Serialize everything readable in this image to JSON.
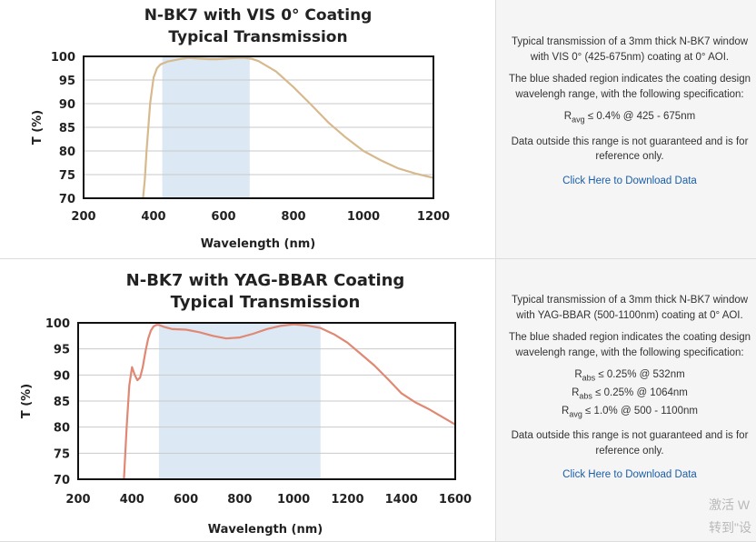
{
  "chart_data": [
    {
      "type": "line",
      "title": "N-BK7 with VIS 0° Coating",
      "subtitle": "Typical Transmission",
      "xlabel": "Wavelength (nm)",
      "ylabel": "T (%)",
      "xlim": [
        200,
        1200
      ],
      "ylim": [
        70,
        100
      ],
      "xticks": [
        "200",
        "400",
        "600",
        "800",
        "1000",
        "1200"
      ],
      "yticks": [
        "70",
        "75",
        "80",
        "85",
        "90",
        "95",
        "100"
      ],
      "shaded_region": [
        425,
        675
      ],
      "shade_color": "#dce9f5",
      "line_color": "#d7b98e",
      "grid": true,
      "series": [
        {
          "x": [
            370,
            375,
            380,
            390,
            400,
            410,
            420,
            440,
            460,
            480,
            500,
            520,
            540,
            560,
            580,
            600,
            620,
            640,
            660,
            680,
            700,
            750,
            800,
            850,
            900,
            950,
            1000,
            1050,
            1100,
            1150,
            1200
          ],
          "y": [
            70,
            74,
            80,
            90,
            95.5,
            97.5,
            98.3,
            98.9,
            99.2,
            99.5,
            99.7,
            99.6,
            99.5,
            99.4,
            99.4,
            99.5,
            99.6,
            99.7,
            99.7,
            99.5,
            99.0,
            96.8,
            93.5,
            89.8,
            86.0,
            82.8,
            80.0,
            78.0,
            76.3,
            75.2,
            74.3
          ]
        }
      ]
    },
    {
      "type": "line",
      "title": "N-BK7 with YAG-BBAR Coating",
      "subtitle": "Typical Transmission",
      "xlabel": "Wavelength (nm)",
      "ylabel": "T (%)",
      "xlim": [
        200,
        1600
      ],
      "ylim": [
        70,
        100
      ],
      "xticks": [
        "200",
        "400",
        "600",
        "800",
        "1000",
        "1200",
        "1400",
        "1600"
      ],
      "yticks": [
        "70",
        "75",
        "80",
        "85",
        "90",
        "95",
        "100"
      ],
      "shaded_region": [
        500,
        1100
      ],
      "shade_color": "#dce9f5",
      "line_color": "#e08873",
      "grid": true,
      "series": [
        {
          "x": [
            370,
            380,
            390,
            400,
            410,
            420,
            430,
            440,
            450,
            460,
            470,
            480,
            490,
            500,
            520,
            550,
            600,
            650,
            700,
            750,
            800,
            850,
            900,
            950,
            1000,
            1050,
            1100,
            1150,
            1200,
            1250,
            1300,
            1350,
            1400,
            1450,
            1500,
            1550,
            1600
          ],
          "y": [
            70,
            80,
            88,
            91.5,
            90,
            89,
            89.5,
            91.5,
            94.5,
            97,
            98.5,
            99.3,
            99.6,
            99.6,
            99.2,
            98.8,
            98.7,
            98.2,
            97.5,
            97.0,
            97.2,
            97.9,
            98.8,
            99.4,
            99.7,
            99.5,
            99.0,
            97.8,
            96.2,
            94.0,
            91.8,
            89.2,
            86.5,
            84.8,
            83.5,
            82.0,
            80.5
          ]
        }
      ]
    }
  ],
  "panels": [
    {
      "desc": "Typical transmission of a 3mm thick N-BK7 window with VIS 0° (425-675nm) coating at 0° AOI.",
      "note": "The blue shaded region indicates the coating design wavelengh range, with the following specification:",
      "specs": [
        {
          "sym": "R",
          "sub": "avg",
          "text": " ≤ 0.4% @ 425 - 675nm"
        }
      ],
      "disclaimer": "Data outside this range is not guaranteed and is for reference only.",
      "link": "Click Here to Download Data"
    },
    {
      "desc": "Typical transmission of a 3mm thick N-BK7 window with YAG-BBAR (500-1100nm) coating at 0° AOI.",
      "note": "The blue shaded region indicates the coating design wavelengh range, with the following specification:",
      "specs": [
        {
          "sym": "R",
          "sub": "abs",
          "text": " ≤ 0.25% @ 532nm"
        },
        {
          "sym": "R",
          "sub": "abs",
          "text": " ≤ 0.25% @ 1064nm"
        },
        {
          "sym": "R",
          "sub": "avg",
          "text": " ≤ 1.0% @ 500 - 1100nm"
        }
      ],
      "disclaimer": "Data outside this range is not guaranteed and is for reference only.",
      "link": "Click Here to Download Data"
    }
  ],
  "watermark": {
    "line1": "激活 W",
    "line2": "转到\"设"
  }
}
